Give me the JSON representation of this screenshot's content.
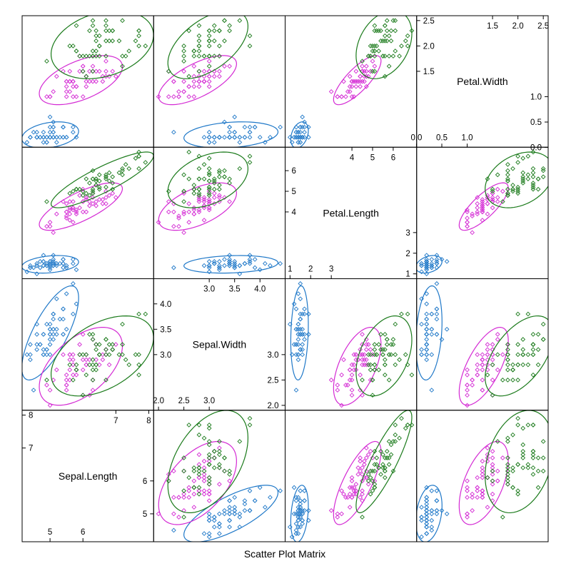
{
  "chart_data": {
    "type": "scatter",
    "xlabel": "Scatter Plot Matrix",
    "variables": [
      {
        "name": "Sepal.Length",
        "range": [
          4.3,
          8.0
        ],
        "ticks_low": [
          "5",
          "6"
        ],
        "ticks_high": [
          "7",
          "8"
        ],
        "tick_low_values": [
          5,
          6
        ],
        "tick_high_values": [
          7,
          8
        ]
      },
      {
        "name": "Sepal.Width",
        "range": [
          2.0,
          4.4
        ],
        "ticks_low": [
          "2.0",
          "2.5",
          "3.0"
        ],
        "ticks_high": [
          "3.0",
          "3.5",
          "4.0"
        ],
        "tick_low_values": [
          2.0,
          2.5,
          3.0
        ],
        "tick_high_values": [
          3.0,
          3.5,
          4.0
        ]
      },
      {
        "name": "Petal.Length",
        "range": [
          1.0,
          6.9
        ],
        "ticks_low": [
          "1",
          "2",
          "3"
        ],
        "ticks_high": [
          "4",
          "5",
          "6"
        ],
        "tick_low_values": [
          1,
          2,
          3
        ],
        "tick_high_values": [
          4,
          5,
          6
        ]
      },
      {
        "name": "Petal.Width",
        "range": [
          0.1,
          2.5
        ],
        "ticks_low": [
          "0.0",
          "0.5",
          "1.0"
        ],
        "ticks_high": [
          "1.5",
          "2.0",
          "2.5"
        ],
        "tick_low_values": [
          0.0,
          0.5,
          1.0
        ],
        "tick_high_values": [
          1.5,
          2.0,
          2.5
        ]
      }
    ],
    "ellipse_level": 0.95,
    "series": [
      {
        "color": "#1f78c8",
        "values": [
          [
            5.1,
            3.5,
            1.4,
            0.2
          ],
          [
            4.9,
            3.0,
            1.4,
            0.2
          ],
          [
            4.7,
            3.2,
            1.3,
            0.2
          ],
          [
            4.6,
            3.1,
            1.5,
            0.2
          ],
          [
            5.0,
            3.6,
            1.4,
            0.2
          ],
          [
            5.4,
            3.9,
            1.7,
            0.4
          ],
          [
            4.6,
            3.4,
            1.4,
            0.3
          ],
          [
            5.0,
            3.4,
            1.5,
            0.2
          ],
          [
            4.4,
            2.9,
            1.4,
            0.2
          ],
          [
            4.9,
            3.1,
            1.5,
            0.1
          ],
          [
            5.4,
            3.7,
            1.5,
            0.2
          ],
          [
            4.8,
            3.4,
            1.6,
            0.2
          ],
          [
            4.8,
            3.0,
            1.4,
            0.1
          ],
          [
            4.3,
            3.0,
            1.1,
            0.1
          ],
          [
            5.8,
            4.0,
            1.2,
            0.2
          ],
          [
            5.7,
            4.4,
            1.5,
            0.4
          ],
          [
            5.4,
            3.9,
            1.3,
            0.4
          ],
          [
            5.1,
            3.5,
            1.4,
            0.3
          ],
          [
            5.7,
            3.8,
            1.7,
            0.3
          ],
          [
            5.1,
            3.8,
            1.5,
            0.3
          ],
          [
            5.4,
            3.4,
            1.7,
            0.2
          ],
          [
            5.1,
            3.7,
            1.5,
            0.4
          ],
          [
            4.6,
            3.6,
            1.0,
            0.2
          ],
          [
            5.1,
            3.3,
            1.7,
            0.5
          ],
          [
            4.8,
            3.4,
            1.9,
            0.2
          ],
          [
            5.0,
            3.0,
            1.6,
            0.2
          ],
          [
            5.0,
            3.4,
            1.6,
            0.4
          ],
          [
            5.2,
            3.5,
            1.5,
            0.2
          ],
          [
            5.2,
            3.4,
            1.4,
            0.2
          ],
          [
            4.7,
            3.2,
            1.6,
            0.2
          ],
          [
            4.8,
            3.1,
            1.6,
            0.2
          ],
          [
            5.4,
            3.4,
            1.5,
            0.4
          ],
          [
            5.2,
            4.1,
            1.5,
            0.1
          ],
          [
            5.5,
            4.2,
            1.4,
            0.2
          ],
          [
            4.9,
            3.1,
            1.5,
            0.2
          ],
          [
            5.0,
            3.2,
            1.2,
            0.2
          ],
          [
            5.5,
            3.5,
            1.3,
            0.2
          ],
          [
            4.9,
            3.6,
            1.4,
            0.1
          ],
          [
            4.4,
            3.0,
            1.3,
            0.2
          ],
          [
            5.1,
            3.4,
            1.5,
            0.2
          ],
          [
            5.0,
            3.5,
            1.3,
            0.3
          ],
          [
            4.5,
            2.3,
            1.3,
            0.3
          ],
          [
            4.4,
            3.2,
            1.3,
            0.2
          ],
          [
            5.0,
            3.5,
            1.6,
            0.6
          ],
          [
            5.1,
            3.8,
            1.9,
            0.4
          ],
          [
            4.8,
            3.0,
            1.4,
            0.3
          ],
          [
            5.1,
            3.8,
            1.6,
            0.2
          ],
          [
            4.6,
            3.2,
            1.4,
            0.2
          ],
          [
            5.3,
            3.7,
            1.5,
            0.2
          ],
          [
            5.0,
            3.3,
            1.4,
            0.2
          ]
        ]
      },
      {
        "color": "#d42ad4",
        "values": [
          [
            7.0,
            3.2,
            4.7,
            1.4
          ],
          [
            6.4,
            3.2,
            4.5,
            1.5
          ],
          [
            6.9,
            3.1,
            4.9,
            1.5
          ],
          [
            5.5,
            2.3,
            4.0,
            1.3
          ],
          [
            6.5,
            2.8,
            4.6,
            1.5
          ],
          [
            5.7,
            2.8,
            4.5,
            1.3
          ],
          [
            6.3,
            3.3,
            4.7,
            1.6
          ],
          [
            4.9,
            2.4,
            3.3,
            1.0
          ],
          [
            6.6,
            2.9,
            4.6,
            1.3
          ],
          [
            5.2,
            2.7,
            3.9,
            1.4
          ],
          [
            5.0,
            2.0,
            3.5,
            1.0
          ],
          [
            5.9,
            3.0,
            4.2,
            1.5
          ],
          [
            6.0,
            2.2,
            4.0,
            1.0
          ],
          [
            6.1,
            2.9,
            4.7,
            1.4
          ],
          [
            5.6,
            2.9,
            3.6,
            1.3
          ],
          [
            6.7,
            3.1,
            4.4,
            1.4
          ],
          [
            5.6,
            3.0,
            4.5,
            1.5
          ],
          [
            5.8,
            2.7,
            4.1,
            1.0
          ],
          [
            6.2,
            2.2,
            4.5,
            1.5
          ],
          [
            5.6,
            2.5,
            3.9,
            1.1
          ],
          [
            5.9,
            3.2,
            4.8,
            1.8
          ],
          [
            6.1,
            2.8,
            4.0,
            1.3
          ],
          [
            6.3,
            2.5,
            4.9,
            1.5
          ],
          [
            6.1,
            2.8,
            4.7,
            1.2
          ],
          [
            6.4,
            2.9,
            4.3,
            1.3
          ],
          [
            6.6,
            3.0,
            4.4,
            1.4
          ],
          [
            6.8,
            2.8,
            4.8,
            1.4
          ],
          [
            6.7,
            3.0,
            5.0,
            1.7
          ],
          [
            6.0,
            2.9,
            4.5,
            1.5
          ],
          [
            5.7,
            2.6,
            3.5,
            1.0
          ],
          [
            5.5,
            2.4,
            3.8,
            1.1
          ],
          [
            5.5,
            2.4,
            3.7,
            1.0
          ],
          [
            5.8,
            2.7,
            3.9,
            1.2
          ],
          [
            6.0,
            2.7,
            5.1,
            1.6
          ],
          [
            5.4,
            3.0,
            4.5,
            1.5
          ],
          [
            6.0,
            3.4,
            4.5,
            1.6
          ],
          [
            6.7,
            3.1,
            4.7,
            1.5
          ],
          [
            6.3,
            2.3,
            4.4,
            1.3
          ],
          [
            5.6,
            3.0,
            4.1,
            1.3
          ],
          [
            5.5,
            2.5,
            4.0,
            1.3
          ],
          [
            5.5,
            2.6,
            4.4,
            1.2
          ],
          [
            6.1,
            3.0,
            4.6,
            1.4
          ],
          [
            5.8,
            2.6,
            4.0,
            1.2
          ],
          [
            5.0,
            2.3,
            3.3,
            1.0
          ],
          [
            5.6,
            2.7,
            4.2,
            1.3
          ],
          [
            5.7,
            3.0,
            4.2,
            1.2
          ],
          [
            5.7,
            2.9,
            4.2,
            1.3
          ],
          [
            6.2,
            2.9,
            4.3,
            1.3
          ],
          [
            5.1,
            2.5,
            3.0,
            1.1
          ],
          [
            5.7,
            2.8,
            4.1,
            1.3
          ]
        ]
      },
      {
        "color": "#1a7a1a",
        "values": [
          [
            6.3,
            3.3,
            6.0,
            2.5
          ],
          [
            5.8,
            2.7,
            5.1,
            1.9
          ],
          [
            7.1,
            3.0,
            5.9,
            2.1
          ],
          [
            6.3,
            2.9,
            5.6,
            1.8
          ],
          [
            6.5,
            3.0,
            5.8,
            2.2
          ],
          [
            7.6,
            3.0,
            6.6,
            2.1
          ],
          [
            4.9,
            2.5,
            4.5,
            1.7
          ],
          [
            7.3,
            2.9,
            6.3,
            1.8
          ],
          [
            6.7,
            2.5,
            5.8,
            1.8
          ],
          [
            7.2,
            3.6,
            6.1,
            2.5
          ],
          [
            6.5,
            3.2,
            5.1,
            2.0
          ],
          [
            6.4,
            2.7,
            5.3,
            1.9
          ],
          [
            6.8,
            3.0,
            5.5,
            2.1
          ],
          [
            5.7,
            2.5,
            5.0,
            2.0
          ],
          [
            5.8,
            2.8,
            5.1,
            2.4
          ],
          [
            6.4,
            3.2,
            5.3,
            2.3
          ],
          [
            6.5,
            3.0,
            5.5,
            1.8
          ],
          [
            7.7,
            3.8,
            6.7,
            2.2
          ],
          [
            7.7,
            2.6,
            6.9,
            2.3
          ],
          [
            6.0,
            2.2,
            5.0,
            1.5
          ],
          [
            6.9,
            3.2,
            5.7,
            2.3
          ],
          [
            5.6,
            2.8,
            4.9,
            2.0
          ],
          [
            7.7,
            2.8,
            6.7,
            2.0
          ],
          [
            6.3,
            2.7,
            4.9,
            1.8
          ],
          [
            6.7,
            3.3,
            5.7,
            2.1
          ],
          [
            7.2,
            3.2,
            6.0,
            1.8
          ],
          [
            6.2,
            2.8,
            4.8,
            1.8
          ],
          [
            6.1,
            3.0,
            4.9,
            1.8
          ],
          [
            6.4,
            2.8,
            5.6,
            2.1
          ],
          [
            7.2,
            3.0,
            5.8,
            1.6
          ],
          [
            7.4,
            2.8,
            6.1,
            1.9
          ],
          [
            7.9,
            3.8,
            6.4,
            2.0
          ],
          [
            6.4,
            2.8,
            5.6,
            2.2
          ],
          [
            6.3,
            2.8,
            5.1,
            1.5
          ],
          [
            6.1,
            2.6,
            5.6,
            1.4
          ],
          [
            7.7,
            3.0,
            6.1,
            2.3
          ],
          [
            6.3,
            3.4,
            5.6,
            2.4
          ],
          [
            6.4,
            3.1,
            5.5,
            1.8
          ],
          [
            6.0,
            3.0,
            4.8,
            1.8
          ],
          [
            6.9,
            3.1,
            5.4,
            2.1
          ],
          [
            6.7,
            3.1,
            5.6,
            2.4
          ],
          [
            6.9,
            3.1,
            5.1,
            2.3
          ],
          [
            5.8,
            2.7,
            5.1,
            1.9
          ],
          [
            6.8,
            3.2,
            5.9,
            2.3
          ],
          [
            6.7,
            3.3,
            5.7,
            2.5
          ],
          [
            6.7,
            3.0,
            5.2,
            2.3
          ],
          [
            6.3,
            2.5,
            5.0,
            1.9
          ],
          [
            6.5,
            3.0,
            5.2,
            2.0
          ],
          [
            6.2,
            3.4,
            5.4,
            2.3
          ],
          [
            5.9,
            3.0,
            5.1,
            1.8
          ]
        ]
      }
    ]
  }
}
